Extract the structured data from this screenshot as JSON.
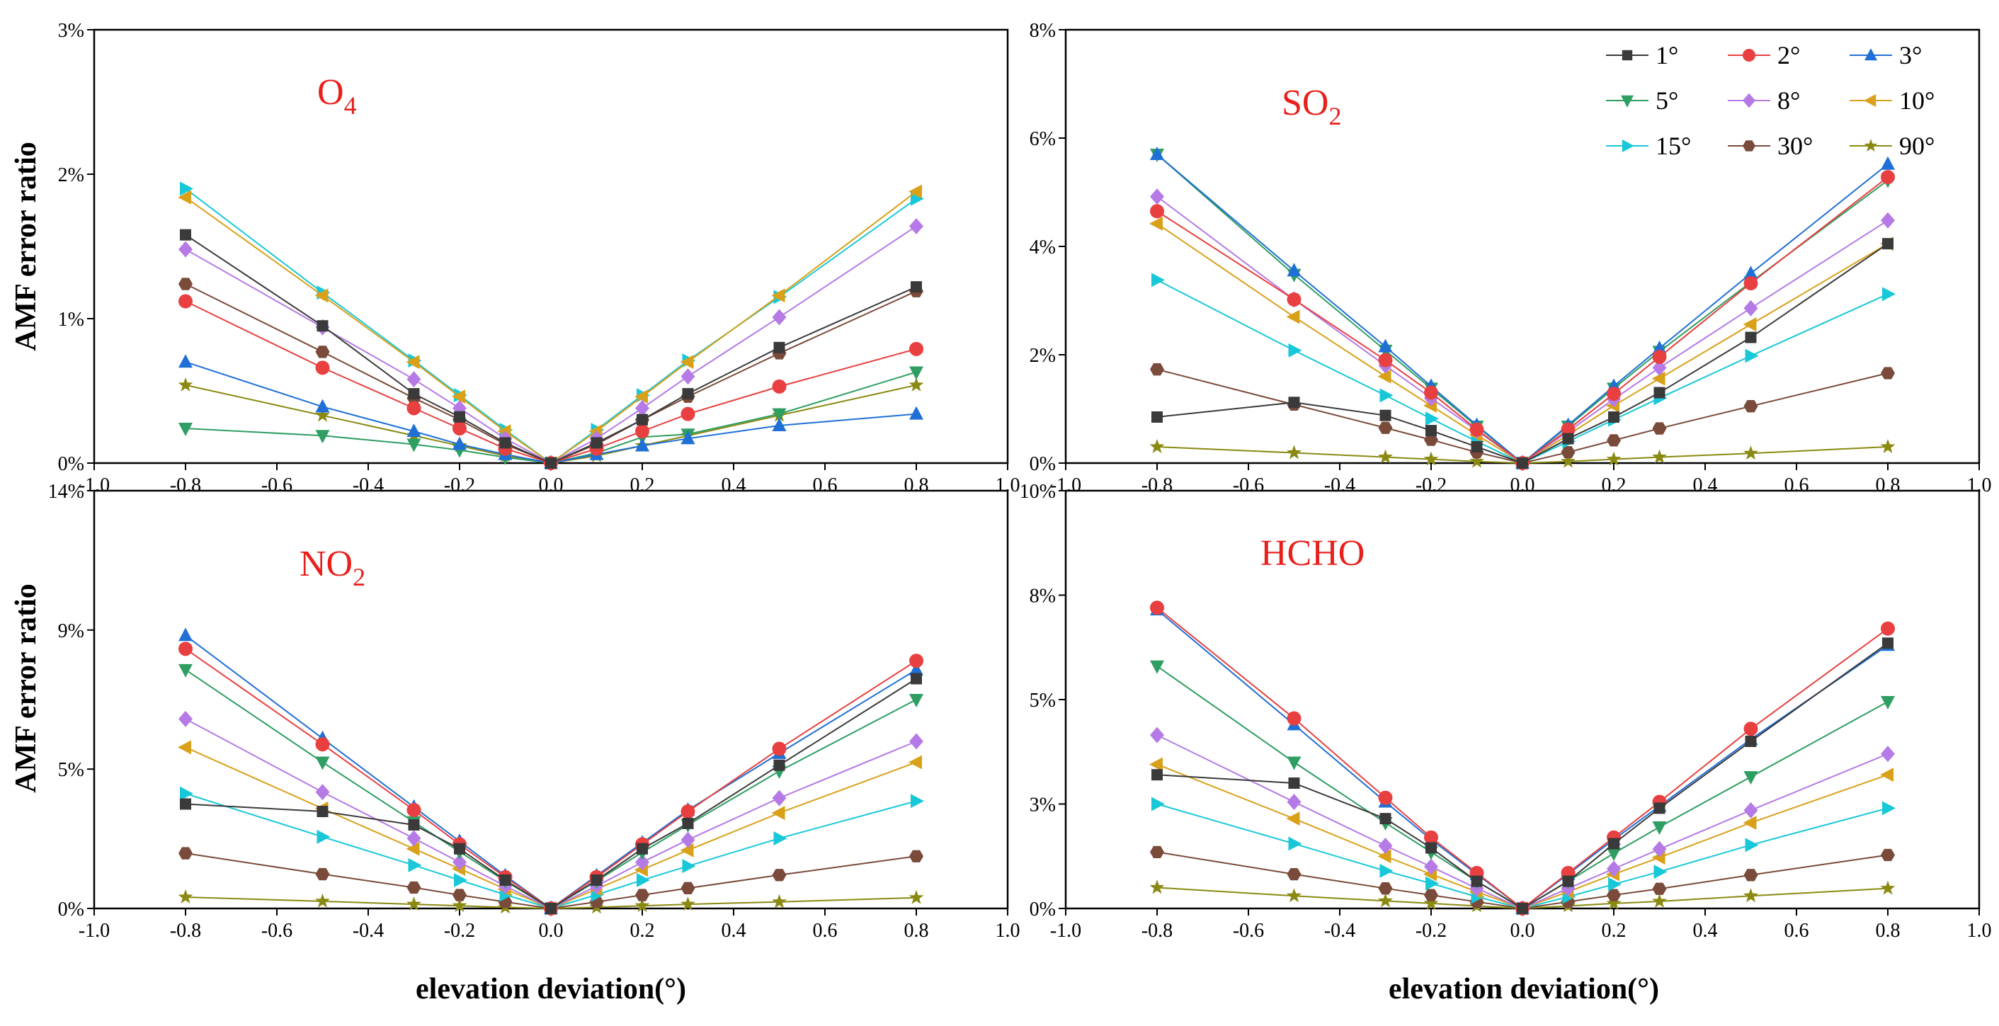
{
  "ylabel": "AMF error ratio",
  "xlabel": "elevation deviation(°)",
  "legend": [
    {
      "name": "1°",
      "color": "#3a3a3a",
      "marker": "square"
    },
    {
      "name": "2°",
      "color": "#e84040",
      "marker": "circle"
    },
    {
      "name": "3°",
      "color": "#1f6fd6",
      "marker": "triangle-up"
    },
    {
      "name": "5°",
      "color": "#2f9e63",
      "marker": "triangle-down"
    },
    {
      "name": "8°",
      "color": "#b57ae6",
      "marker": "diamond"
    },
    {
      "name": "10°",
      "color": "#d9a11a",
      "marker": "triangle-left"
    },
    {
      "name": "15°",
      "color": "#19c8d8",
      "marker": "triangle-right"
    },
    {
      "name": "30°",
      "color": "#7a4a3a",
      "marker": "hexagon"
    },
    {
      "name": "90°",
      "color": "#8a8a12",
      "marker": "star"
    }
  ],
  "chart_data": [
    {
      "type": "line",
      "title_main": "O",
      "title_sub": "4",
      "title_color": "#e8201c",
      "xlim": [
        -1.0,
        1.0
      ],
      "ylim": [
        0,
        3
      ],
      "xticks": [
        "-1.0",
        "-0.8",
        "-0.6",
        "-0.4",
        "-0.2",
        "0.0",
        "0.2",
        "0.4",
        "0.6",
        "0.8",
        "1.0"
      ],
      "yticks": [
        {
          "v": 0,
          "label": "0%"
        },
        {
          "v": 1,
          "label": "1%"
        },
        {
          "v": 2,
          "label": "2%"
        },
        {
          "v": 3,
          "label": "3%"
        }
      ],
      "x": [
        -0.8,
        -0.5,
        -0.3,
        -0.2,
        -0.1,
        0.0,
        0.1,
        0.2,
        0.3,
        0.5,
        0.8
      ],
      "series": [
        {
          "name": "1°",
          "values": [
            1.58,
            0.95,
            0.48,
            0.32,
            0.14,
            0,
            0.14,
            0.3,
            0.48,
            0.8,
            1.22
          ]
        },
        {
          "name": "2°",
          "values": [
            1.12,
            0.66,
            0.38,
            0.24,
            0.1,
            0,
            0.1,
            0.22,
            0.34,
            0.53,
            0.79
          ]
        },
        {
          "name": "3°",
          "values": [
            0.7,
            0.39,
            0.22,
            0.13,
            0.06,
            0,
            0.06,
            0.12,
            0.17,
            0.26,
            0.34
          ]
        },
        {
          "name": "5°",
          "values": [
            0.24,
            0.19,
            0.13,
            0.09,
            0.04,
            0,
            0.07,
            0.18,
            0.2,
            0.34,
            0.63
          ]
        },
        {
          "name": "8°",
          "values": [
            1.48,
            0.94,
            0.58,
            0.38,
            0.17,
            0,
            0.17,
            0.38,
            0.6,
            1.01,
            1.64
          ]
        },
        {
          "name": "10°",
          "values": [
            1.84,
            1.16,
            0.7,
            0.46,
            0.22,
            0,
            0.22,
            0.46,
            0.7,
            1.16,
            1.88
          ]
        },
        {
          "name": "15°",
          "values": [
            1.9,
            1.18,
            0.71,
            0.47,
            0.23,
            0,
            0.23,
            0.47,
            0.71,
            1.15,
            1.83
          ]
        },
        {
          "name": "30°",
          "values": [
            1.24,
            0.77,
            0.45,
            0.3,
            0.13,
            0,
            0.13,
            0.3,
            0.46,
            0.76,
            1.19
          ]
        },
        {
          "name": "90°",
          "values": [
            0.54,
            0.33,
            0.19,
            0.12,
            0.05,
            0,
            0.05,
            0.12,
            0.19,
            0.33,
            0.54
          ]
        }
      ]
    },
    {
      "type": "line",
      "title_main": "SO",
      "title_sub": "2",
      "title_color": "#e8201c",
      "xlim": [
        -1.0,
        1.0
      ],
      "ylim": [
        0,
        8
      ],
      "xticks": [
        "-1.0",
        "-0.8",
        "-0.6",
        "-0.4",
        "-0.2",
        "0.0",
        "0.2",
        "0.4",
        "0.6",
        "0.8",
        "1.0"
      ],
      "yticks": [
        {
          "v": 0,
          "label": "0%"
        },
        {
          "v": 2,
          "label": "2%"
        },
        {
          "v": 4,
          "label": "4%"
        },
        {
          "v": 6,
          "label": "6%"
        },
        {
          "v": 8,
          "label": "8%"
        }
      ],
      "x": [
        -0.8,
        -0.5,
        -0.3,
        -0.2,
        -0.1,
        0.0,
        0.1,
        0.2,
        0.3,
        0.5,
        0.8
      ],
      "series": [
        {
          "name": "1°",
          "values": [
            0.85,
            1.12,
            0.88,
            0.6,
            0.3,
            0,
            0.45,
            0.85,
            1.3,
            2.32,
            4.05
          ]
        },
        {
          "name": "2°",
          "values": [
            4.65,
            3.02,
            1.9,
            1.3,
            0.62,
            0,
            0.62,
            1.28,
            1.96,
            3.32,
            5.28
          ]
        },
        {
          "name": "3°",
          "values": [
            5.7,
            3.55,
            2.15,
            1.42,
            0.7,
            0,
            0.7,
            1.42,
            2.12,
            3.5,
            5.52
          ]
        },
        {
          "name": "5°",
          "values": [
            5.7,
            3.48,
            2.08,
            1.38,
            0.68,
            0,
            0.68,
            1.38,
            2.06,
            3.34,
            5.22
          ]
        },
        {
          "name": "8°",
          "values": [
            4.92,
            3.02,
            1.8,
            1.2,
            0.6,
            0,
            0.58,
            1.18,
            1.76,
            2.86,
            4.48
          ]
        },
        {
          "name": "10°",
          "values": [
            4.42,
            2.7,
            1.6,
            1.06,
            0.52,
            0,
            0.52,
            1.06,
            1.56,
            2.56,
            4.05
          ]
        },
        {
          "name": "15°",
          "values": [
            3.38,
            2.08,
            1.25,
            0.82,
            0.4,
            0,
            0.4,
            0.8,
            1.2,
            1.98,
            3.12
          ]
        },
        {
          "name": "30°",
          "values": [
            1.73,
            1.08,
            0.65,
            0.43,
            0.2,
            0,
            0.2,
            0.42,
            0.64,
            1.05,
            1.66
          ]
        },
        {
          "name": "90°",
          "values": [
            0.3,
            0.19,
            0.11,
            0.07,
            0.03,
            0,
            0.03,
            0.07,
            0.11,
            0.18,
            0.3
          ]
        }
      ]
    },
    {
      "type": "line",
      "title_main": "NO",
      "title_sub": "2",
      "title_color": "#e8201c",
      "xlim": [
        -1.0,
        1.0
      ],
      "ylim": [
        0,
        14
      ],
      "xticks": [
        "-1.0",
        "-0.8",
        "-0.6",
        "-0.4",
        "-0.2",
        "0.0",
        "0.2",
        "0.4",
        "0.6",
        "0.8",
        "1.0"
      ],
      "yticks": [
        {
          "v": 0,
          "label": "0%"
        },
        {
          "v": 4.67,
          "label": "5%"
        },
        {
          "v": 9.33,
          "label": "9%"
        },
        {
          "v": 14,
          "label": "14%"
        }
      ],
      "x": [
        -0.8,
        -0.5,
        -0.3,
        -0.2,
        -0.1,
        0.0,
        0.1,
        0.2,
        0.3,
        0.5,
        0.8
      ],
      "series": [
        {
          "name": "1°",
          "values": [
            3.5,
            3.25,
            2.8,
            2.0,
            0.95,
            0,
            0.95,
            2.0,
            2.85,
            4.8,
            7.7
          ]
        },
        {
          "name": "2°",
          "values": [
            8.7,
            5.5,
            3.3,
            2.15,
            1.05,
            0,
            1.05,
            2.15,
            3.25,
            5.35,
            8.3
          ]
        },
        {
          "name": "3°",
          "values": [
            9.15,
            5.7,
            3.4,
            2.25,
            1.1,
            0,
            1.1,
            2.2,
            3.3,
            5.2,
            8.0
          ]
        },
        {
          "name": "5°",
          "values": [
            8.0,
            4.9,
            2.9,
            1.9,
            0.92,
            0,
            0.92,
            1.88,
            2.8,
            4.6,
            7.0
          ]
        },
        {
          "name": "8°",
          "values": [
            6.35,
            3.9,
            2.35,
            1.55,
            0.75,
            0,
            0.75,
            1.55,
            2.3,
            3.7,
            5.6
          ]
        },
        {
          "name": "10°",
          "values": [
            5.4,
            3.35,
            2.0,
            1.33,
            0.65,
            0,
            0.65,
            1.3,
            1.95,
            3.2,
            4.9
          ]
        },
        {
          "name": "15°",
          "values": [
            3.85,
            2.4,
            1.45,
            0.95,
            0.46,
            0,
            0.46,
            0.95,
            1.42,
            2.35,
            3.6
          ]
        },
        {
          "name": "30°",
          "values": [
            1.85,
            1.15,
            0.7,
            0.45,
            0.22,
            0,
            0.22,
            0.45,
            0.68,
            1.12,
            1.75
          ]
        },
        {
          "name": "90°",
          "values": [
            0.38,
            0.24,
            0.14,
            0.09,
            0.04,
            0,
            0.04,
            0.09,
            0.14,
            0.22,
            0.36
          ]
        }
      ]
    },
    {
      "type": "line",
      "title_main": "HCHO",
      "title_sub": "",
      "title_color": "#e8201c",
      "xlim": [
        -1.0,
        1.0
      ],
      "ylim": [
        0,
        10
      ],
      "xticks": [
        "-1.0",
        "-0.8",
        "-0.6",
        "-0.4",
        "-0.2",
        "0.0",
        "0.2",
        "0.4",
        "0.6",
        "0.8",
        "1.0"
      ],
      "yticks": [
        {
          "v": 0,
          "label": "0%"
        },
        {
          "v": 2.5,
          "label": "3%"
        },
        {
          "v": 5,
          "label": "5%"
        },
        {
          "v": 7.5,
          "label": "8%"
        },
        {
          "v": 10,
          "label": "10%"
        }
      ],
      "x": [
        -0.8,
        -0.5,
        -0.3,
        -0.2,
        -0.1,
        0.0,
        0.1,
        0.2,
        0.3,
        0.5,
        0.8
      ],
      "series": [
        {
          "name": "1°",
          "values": [
            3.2,
            3.0,
            2.15,
            1.45,
            0.65,
            0,
            0.65,
            1.55,
            2.4,
            4.0,
            6.35
          ]
        },
        {
          "name": "2°",
          "values": [
            7.2,
            4.55,
            2.65,
            1.7,
            0.85,
            0,
            0.85,
            1.7,
            2.55,
            4.3,
            6.7
          ]
        },
        {
          "name": "3°",
          "values": [
            7.15,
            4.4,
            2.55,
            1.65,
            0.82,
            0,
            0.82,
            1.65,
            2.45,
            4.05,
            6.3
          ]
        },
        {
          "name": "5°",
          "values": [
            5.8,
            3.5,
            2.05,
            1.35,
            0.65,
            0,
            0.65,
            1.32,
            1.95,
            3.15,
            4.95
          ]
        },
        {
          "name": "8°",
          "values": [
            4.15,
            2.55,
            1.5,
            1.0,
            0.48,
            0,
            0.48,
            0.95,
            1.42,
            2.35,
            3.7
          ]
        },
        {
          "name": "10°",
          "values": [
            3.45,
            2.15,
            1.25,
            0.82,
            0.4,
            0,
            0.4,
            0.82,
            1.22,
            2.05,
            3.2
          ]
        },
        {
          "name": "15°",
          "values": [
            2.5,
            1.55,
            0.9,
            0.6,
            0.28,
            0,
            0.28,
            0.58,
            0.88,
            1.52,
            2.4
          ]
        },
        {
          "name": "30°",
          "values": [
            1.35,
            0.82,
            0.48,
            0.32,
            0.16,
            0,
            0.16,
            0.32,
            0.47,
            0.8,
            1.28
          ]
        },
        {
          "name": "90°",
          "values": [
            0.5,
            0.3,
            0.18,
            0.12,
            0.06,
            0,
            0.06,
            0.12,
            0.17,
            0.3,
            0.48
          ]
        }
      ]
    }
  ]
}
